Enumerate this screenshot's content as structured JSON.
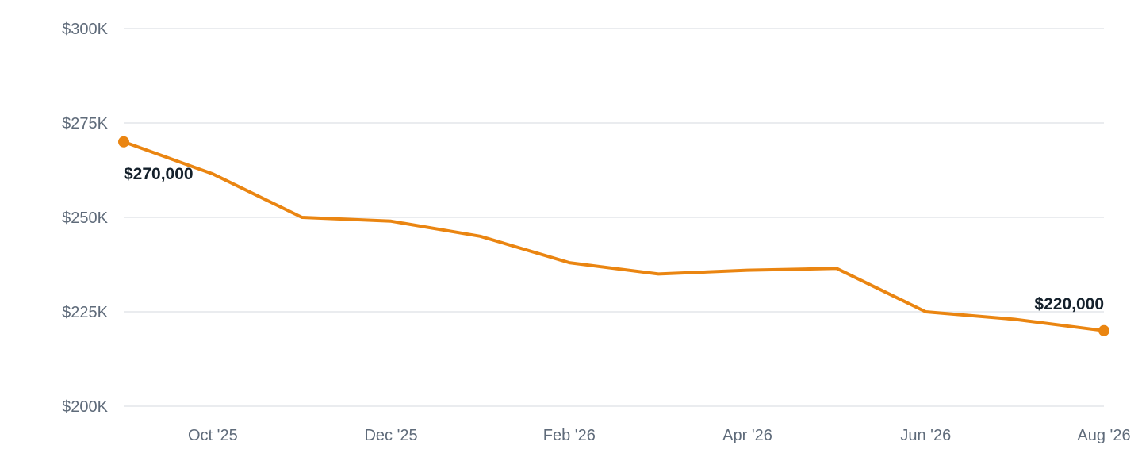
{
  "chart_data": {
    "type": "line",
    "title": "",
    "xlabel": "",
    "ylabel": "",
    "ylim": [
      200000,
      300000
    ],
    "y_ticks": [
      {
        "value": 300000,
        "label": "$300K"
      },
      {
        "value": 275000,
        "label": "$275K"
      },
      {
        "value": 250000,
        "label": "$250K"
      },
      {
        "value": 225000,
        "label": "$225K"
      },
      {
        "value": 200000,
        "label": "$200K"
      }
    ],
    "x_ticks": [
      {
        "x": "2025-10",
        "label": "Oct '25"
      },
      {
        "x": "2025-12",
        "label": "Dec '25"
      },
      {
        "x": "2026-02",
        "label": "Feb '26"
      },
      {
        "x": "2026-04",
        "label": "Apr '26"
      },
      {
        "x": "2026-06",
        "label": "Jun '26"
      },
      {
        "x": "2026-08",
        "label": "Aug '26"
      }
    ],
    "xlim": [
      "2025-09",
      "2026-08"
    ],
    "grid": true,
    "color": "#ea8511",
    "series": [
      {
        "x": [
          "2025-09",
          "2025-10",
          "2025-11",
          "2025-12",
          "2026-01",
          "2026-02",
          "2026-03",
          "2026-04",
          "2026-05",
          "2026-06",
          "2026-07",
          "2026-08"
        ],
        "values": [
          270000,
          261500,
          250000,
          249000,
          245000,
          238000,
          235000,
          236000,
          236500,
          225000,
          223000,
          220000
        ]
      }
    ],
    "annotations": [
      {
        "x": "2025-09",
        "value": 270000,
        "label": "$270,000",
        "position": "below"
      },
      {
        "x": "2026-08",
        "value": 220000,
        "label": "$220,000",
        "position": "above"
      }
    ]
  }
}
